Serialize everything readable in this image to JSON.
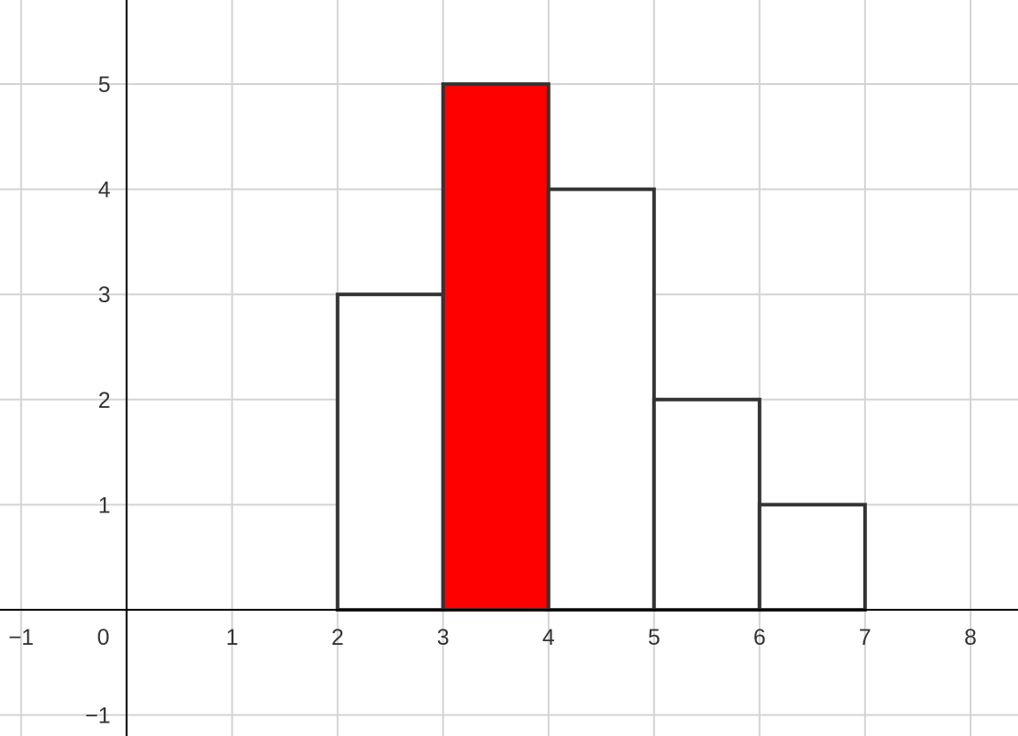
{
  "chart_data": {
    "type": "bar",
    "bins": [
      {
        "x_start": 2,
        "x_end": 3,
        "value": 3,
        "fill": "#ffffff"
      },
      {
        "x_start": 3,
        "x_end": 4,
        "value": 5,
        "fill": "#ff0000"
      },
      {
        "x_start": 4,
        "x_end": 5,
        "value": 4,
        "fill": "#ffffff"
      },
      {
        "x_start": 5,
        "x_end": 6,
        "value": 2,
        "fill": "#ffffff"
      },
      {
        "x_start": 6,
        "x_end": 7,
        "value": 1,
        "fill": "#ffffff"
      }
    ],
    "xlim": [
      -1.2,
      8.45
    ],
    "ylim": [
      -1.2,
      5.8
    ],
    "x_ticks": [
      {
        "value": -1,
        "label": "−1"
      },
      {
        "value": 1,
        "label": "1"
      },
      {
        "value": 2,
        "label": "2"
      },
      {
        "value": 3,
        "label": "3"
      },
      {
        "value": 4,
        "label": "4"
      },
      {
        "value": 5,
        "label": "5"
      },
      {
        "value": 6,
        "label": "6"
      },
      {
        "value": 7,
        "label": "7"
      },
      {
        "value": 8,
        "label": "8"
      }
    ],
    "y_ticks": [
      {
        "value": -1,
        "label": "−1"
      },
      {
        "value": 1,
        "label": "1"
      },
      {
        "value": 2,
        "label": "2"
      },
      {
        "value": 3,
        "label": "3"
      },
      {
        "value": 4,
        "label": "4"
      },
      {
        "value": 5,
        "label": "5"
      }
    ],
    "origin_label": "0",
    "grid": true,
    "grid_color": "#d3d3d3",
    "axis_color": "#000000",
    "bar_stroke_color": "#333333",
    "highlight_color": "#ff0000"
  }
}
